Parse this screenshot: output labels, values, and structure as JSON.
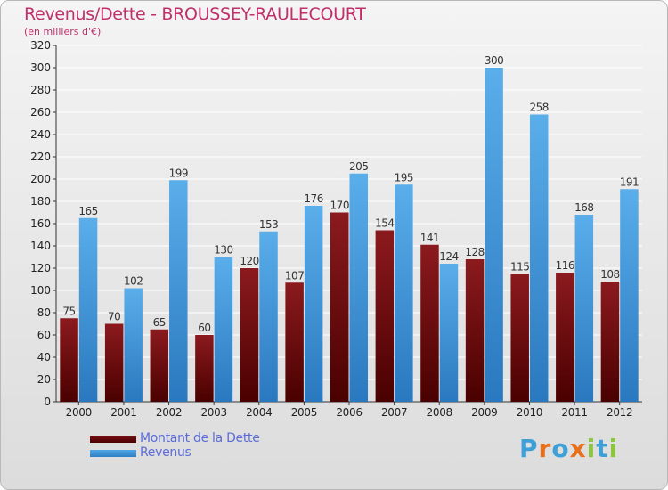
{
  "chart_data": {
    "type": "bar",
    "title": "Revenus/Dette - BROUSSEY-RAULECOURT",
    "subtitle": "(en milliers d'€)",
    "categories": [
      "2000",
      "2001",
      "2002",
      "2003",
      "2004",
      "2005",
      "2006",
      "2007",
      "2008",
      "2009",
      "2010",
      "2011",
      "2012"
    ],
    "series": [
      {
        "name": "Montant de la Dette",
        "values": [
          75,
          70,
          65,
          60,
          120,
          107,
          170,
          154,
          141,
          128,
          115,
          116,
          108
        ],
        "color": "#6b0b0e"
      },
      {
        "name": "Revenus",
        "values": [
          165,
          102,
          199,
          130,
          153,
          176,
          205,
          195,
          124,
          300,
          258,
          168,
          191
        ],
        "color": "#3f95dc"
      }
    ],
    "ylim": [
      0,
      320
    ],
    "yticks": [
      0,
      20,
      40,
      60,
      80,
      100,
      120,
      140,
      160,
      180,
      200,
      220,
      240,
      260,
      280,
      300,
      320
    ],
    "grid": true,
    "legend": "bottom-left",
    "xlabel": "",
    "ylabel": ""
  },
  "logo": {
    "text": "Proxiti",
    "letters": [
      {
        "char": "P",
        "color": "#3fa0d8"
      },
      {
        "char": "r",
        "color": "#e8701a"
      },
      {
        "char": "o",
        "color": "#3fa0d8"
      },
      {
        "char": "x",
        "color": "#e8701a"
      },
      {
        "char": "i",
        "color": "#8cc63e"
      },
      {
        "char": "t",
        "color": "#3fa0d8"
      },
      {
        "char": "i",
        "color": "#8cc63e"
      }
    ]
  }
}
